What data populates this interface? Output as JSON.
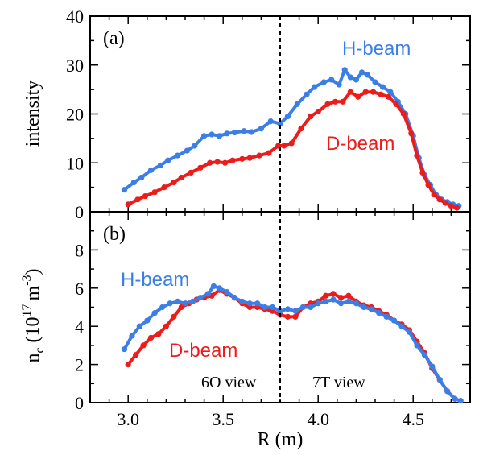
{
  "chart_data": [
    {
      "type": "line",
      "panel_label": "(a)",
      "ylabel": "intensity",
      "xlim": [
        2.8,
        4.8
      ],
      "ylim": [
        0,
        40
      ],
      "yticks": [
        "0",
        "10",
        "20",
        "30",
        "40"
      ],
      "series": [
        {
          "name": "H-beam",
          "color": "#3b7fe6",
          "x": [
            2.98,
            3.03,
            3.07,
            3.12,
            3.17,
            3.21,
            3.26,
            3.31,
            3.35,
            3.4,
            3.44,
            3.48,
            3.52,
            3.56,
            3.61,
            3.65,
            3.7,
            3.75,
            3.8,
            3.84,
            3.89,
            3.94,
            3.98,
            4.03,
            4.07,
            4.11,
            4.14,
            4.17,
            4.2,
            4.23,
            4.26,
            4.3,
            4.34,
            4.38,
            4.42,
            4.46,
            4.5,
            4.53,
            4.56,
            4.59,
            4.62,
            4.65,
            4.68,
            4.71,
            4.74
          ],
          "y": [
            4.5,
            6.0,
            7.0,
            8.5,
            9.5,
            10.5,
            11.5,
            12.5,
            13.5,
            15.5,
            15.8,
            15.5,
            16.0,
            16.2,
            16.5,
            16.3,
            17.0,
            18.5,
            18.0,
            19.5,
            22.0,
            24.0,
            25.5,
            26.5,
            27.0,
            26.0,
            29.0,
            27.5,
            27.0,
            28.5,
            28.0,
            26.5,
            25.5,
            24.5,
            22.5,
            20.0,
            15.5,
            11.0,
            7.5,
            5.5,
            3.5,
            2.5,
            2.0,
            1.5,
            1.2
          ]
        },
        {
          "name": "D-beam",
          "color": "#ee1b1b",
          "x": [
            3.0,
            3.05,
            3.09,
            3.14,
            3.19,
            3.24,
            3.28,
            3.33,
            3.38,
            3.43,
            3.47,
            3.51,
            3.55,
            3.6,
            3.64,
            3.69,
            3.74,
            3.79,
            3.82,
            3.86,
            3.91,
            3.96,
            4.0,
            4.05,
            4.09,
            4.13,
            4.17,
            4.21,
            4.25,
            4.29,
            4.33,
            4.37,
            4.41,
            4.45,
            4.49,
            4.52,
            4.55,
            4.58,
            4.61,
            4.64,
            4.67,
            4.7,
            4.73
          ],
          "y": [
            1.5,
            2.5,
            3.2,
            4.0,
            5.0,
            6.0,
            7.0,
            8.0,
            9.0,
            10.0,
            10.2,
            10.0,
            10.5,
            10.8,
            11.0,
            11.5,
            12.0,
            13.5,
            13.5,
            14.0,
            17.0,
            19.5,
            20.5,
            22.0,
            22.5,
            22.5,
            24.5,
            23.5,
            24.5,
            24.5,
            24.0,
            23.5,
            22.0,
            20.0,
            16.0,
            11.5,
            8.0,
            5.5,
            3.5,
            2.5,
            1.8,
            1.2,
            0.8
          ]
        }
      ],
      "series_labels": [
        "H-beam",
        "D-beam"
      ]
    },
    {
      "type": "line",
      "panel_label": "(b)",
      "ylabel": "n_c (10^17 m^-3)",
      "xlabel": "R (m)",
      "xlim": [
        2.8,
        4.8
      ],
      "ylim": [
        0,
        10
      ],
      "xticks": [
        "3.0",
        "3.5",
        "4.0",
        "4.5"
      ],
      "yticks": [
        "0",
        "2",
        "4",
        "6",
        "8"
      ],
      "series": [
        {
          "name": "H-beam",
          "color": "#3b7fe6",
          "x": [
            2.98,
            3.02,
            3.06,
            3.1,
            3.14,
            3.18,
            3.22,
            3.26,
            3.3,
            3.34,
            3.38,
            3.42,
            3.45,
            3.48,
            3.52,
            3.56,
            3.6,
            3.64,
            3.68,
            3.72,
            3.76,
            3.8,
            3.84,
            3.88,
            3.92,
            3.96,
            4.0,
            4.04,
            4.08,
            4.12,
            4.16,
            4.2,
            4.24,
            4.28,
            4.32,
            4.36,
            4.4,
            4.44,
            4.48,
            4.52,
            4.56,
            4.6,
            4.64,
            4.68,
            4.72,
            4.75
          ],
          "y": [
            2.8,
            3.5,
            4.0,
            4.3,
            4.7,
            5.0,
            5.2,
            5.3,
            5.2,
            5.3,
            5.5,
            5.7,
            6.1,
            6.0,
            5.8,
            5.5,
            5.3,
            5.2,
            5.2,
            5.0,
            5.0,
            4.8,
            4.9,
            4.8,
            5.0,
            5.0,
            5.2,
            5.3,
            5.4,
            5.2,
            5.3,
            5.2,
            5.0,
            4.9,
            4.7,
            4.5,
            4.3,
            4.0,
            3.7,
            3.0,
            2.5,
            1.9,
            1.2,
            0.6,
            0.2,
            0.1
          ]
        },
        {
          "name": "D-beam",
          "color": "#ee1b1b",
          "x": [
            3.0,
            3.04,
            3.08,
            3.12,
            3.16,
            3.2,
            3.24,
            3.28,
            3.32,
            3.36,
            3.4,
            3.44,
            3.48,
            3.52,
            3.56,
            3.6,
            3.64,
            3.68,
            3.72,
            3.76,
            3.8,
            3.84,
            3.88,
            3.92,
            3.96,
            4.0,
            4.04,
            4.08,
            4.12,
            4.16,
            4.2,
            4.24,
            4.28,
            4.32,
            4.36,
            4.4,
            4.44,
            4.48,
            4.52,
            4.56,
            4.6,
            4.64,
            4.68,
            4.72
          ],
          "y": [
            2.0,
            2.5,
            3.0,
            3.4,
            3.6,
            4.0,
            4.5,
            5.0,
            5.2,
            5.4,
            5.5,
            5.6,
            5.9,
            5.7,
            5.5,
            5.2,
            5.0,
            5.0,
            4.9,
            4.8,
            4.6,
            4.5,
            4.5,
            5.0,
            5.2,
            5.3,
            5.6,
            5.7,
            5.5,
            5.6,
            5.3,
            5.1,
            5.0,
            4.8,
            4.6,
            4.3,
            4.1,
            3.8,
            3.2,
            2.6,
            1.8,
            1.2,
            0.6,
            0.2
          ]
        }
      ],
      "series_labels": [
        "H-beam",
        "D-beam"
      ]
    }
  ],
  "divider_x": 3.8,
  "view_labels": [
    "6O view",
    "7T view"
  ],
  "ylabel_b_parts": {
    "n": "n",
    "sub": "c",
    "mid": " (10",
    "sup": "17",
    "unit": "m",
    "unit_sup": "-3",
    "close": ")"
  },
  "xlabel": "R (m)"
}
